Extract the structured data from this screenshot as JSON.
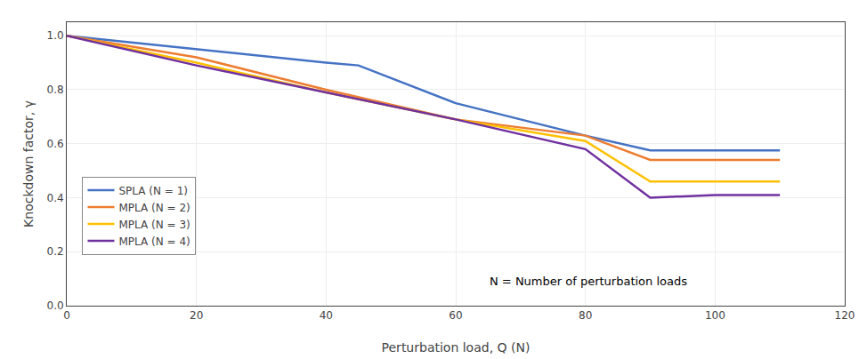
{
  "chart_data": {
    "type": "line",
    "x_label": "Perturbation load, Q (N)",
    "y_label": "Knockdown factor, γ",
    "series": [
      {
        "name": "SPLA (N = 1)",
        "color": "#4472C4",
        "x": [
          0,
          20,
          40,
          45,
          60,
          80,
          90,
          100,
          110
        ],
        "values": [
          1.0,
          0.95,
          0.9,
          0.89,
          0.75,
          0.63,
          0.575,
          0.575,
          0.575
        ]
      },
      {
        "name": "MPLA (N = 2)",
        "color": "#ED7D31",
        "x": [
          0,
          20,
          40,
          60,
          80,
          90,
          100,
          110
        ],
        "values": [
          1.0,
          0.92,
          0.8,
          0.69,
          0.63,
          0.54,
          0.54,
          0.54
        ]
      },
      {
        "name": "MPLA (N = 3)",
        "color": "#FFC000",
        "x": [
          0,
          20,
          40,
          60,
          80,
          90,
          100,
          110
        ],
        "values": [
          1.0,
          0.9,
          0.79,
          0.69,
          0.61,
          0.46,
          0.46,
          0.46
        ]
      },
      {
        "name": "MPLA (N = 4)",
        "color": "#7030A0",
        "x": [
          0,
          20,
          40,
          60,
          80,
          90,
          100,
          110
        ],
        "values": [
          1.0,
          0.89,
          0.79,
          0.69,
          0.58,
          0.4,
          0.41,
          0.41
        ]
      }
    ],
    "xlim": [
      0,
      120
    ],
    "ylim": [
      0,
      1.05
    ],
    "xticks": [
      0,
      20,
      40,
      60,
      80,
      100,
      120
    ],
    "yticks": [
      {
        "value": 0,
        "label": "0.0"
      },
      0.2,
      0.4,
      0.6,
      0.8,
      {
        "value": 1.0,
        "label": "1.0"
      }
    ],
    "annotations": [
      {
        "text": "N = Number of perturbation loads",
        "x": 65,
        "y": 0.06
      }
    ],
    "grid": true,
    "legend": "lower left"
  }
}
